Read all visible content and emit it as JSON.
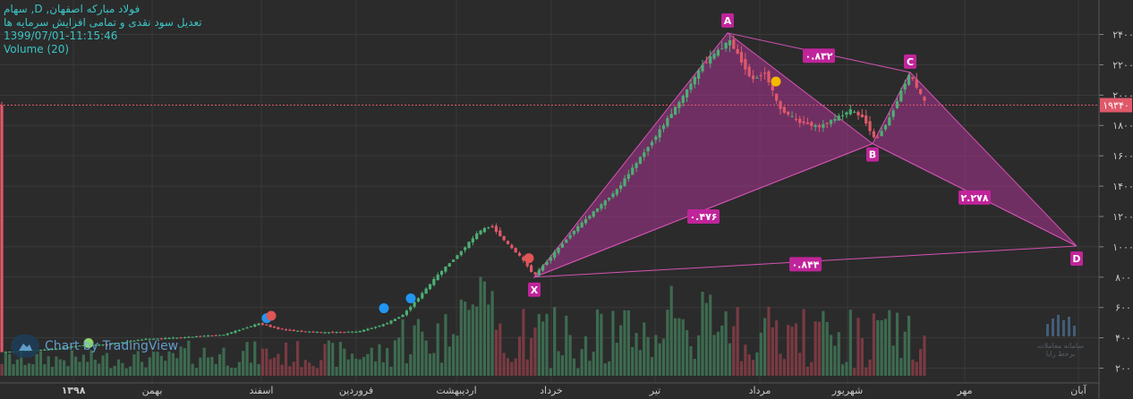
{
  "header": {
    "symbol_line": "فولاد مبارکه اصفهان, D, سهام",
    "adjustment_line": "تعدیل سود نقدی و تمامی افزایش سرمایه ها",
    "timestamp": "1399/07/01-11:15:46",
    "volume_label": "Volume (20)"
  },
  "branding": {
    "tradingview": "Chart by TradingView",
    "watermark": "سامانه معاملات برخط رایا"
  },
  "colors": {
    "background": "#2b2b2b",
    "grid": "#3a3a3a",
    "up": "#4caf73",
    "down": "#e0596b",
    "pattern_fill": "#a8338f",
    "pattern_line": "#d453b3",
    "label_bg": "#c0249a",
    "axis_text": "#c8c8c8",
    "price_line": "#e0596b",
    "volume_up": "#3d6b50",
    "volume_down": "#7a3a42"
  },
  "chart_data": {
    "type": "candlestick",
    "title": "",
    "y_axis": {
      "ticks": [
        2000,
        4000,
        6000,
        8000,
        10000,
        12000,
        14000,
        16000,
        18000,
        20000,
        22000,
        24000
      ],
      "tick_labels": [
        "۲۰۰۰",
        "۴۰۰۰",
        "۶۰۰۰",
        "۸۰۰۰",
        "۱۰۰۰۰",
        "۱۲۰۰۰",
        "۱۴۰۰۰",
        "۱۶۰۰۰",
        "۱۸۰۰۰",
        "۲۰۰۰۰",
        "۲۲۰۰۰",
        "۲۴۰۰۰"
      ],
      "range": [
        1500,
        25800
      ]
    },
    "x_axis": {
      "range": [
        0,
        1000
      ],
      "labels": [
        {
          "t": 82,
          "text": "۱۳۹۸",
          "bold": true
        },
        {
          "t": 170,
          "text": "بهمن"
        },
        {
          "t": 292,
          "text": "اسفند"
        },
        {
          "t": 398,
          "text": "فروردین"
        },
        {
          "t": 510,
          "text": "اردیبهشت"
        },
        {
          "t": 616,
          "text": "خرداد"
        },
        {
          "t": 732,
          "text": "تیر"
        },
        {
          "t": 849,
          "text": "مرداد"
        },
        {
          "t": 947,
          "text": "شهریور"
        },
        {
          "t": 1078,
          "text": "مهر"
        },
        {
          "t": 1205,
          "text": "آبان"
        }
      ]
    },
    "last_price": 19340,
    "last_price_label": "۱۹۳۴۰",
    "price_path": [
      {
        "t": 0,
        "p": 3050
      },
      {
        "t": 60,
        "p": 3250
      },
      {
        "t": 90,
        "p": 3500
      },
      {
        "t": 120,
        "p": 3550
      },
      {
        "t": 160,
        "p": 3900
      },
      {
        "t": 210,
        "p": 4050
      },
      {
        "t": 250,
        "p": 4200
      },
      {
        "t": 290,
        "p": 4950
      },
      {
        "t": 310,
        "p": 4600
      },
      {
        "t": 330,
        "p": 4450
      },
      {
        "t": 360,
        "p": 4350
      },
      {
        "t": 400,
        "p": 4400
      },
      {
        "t": 430,
        "p": 4900
      },
      {
        "t": 450,
        "p": 5500
      },
      {
        "t": 470,
        "p": 6800
      },
      {
        "t": 490,
        "p": 8200
      },
      {
        "t": 515,
        "p": 9700
      },
      {
        "t": 535,
        "p": 11000
      },
      {
        "t": 549,
        "p": 11400
      },
      {
        "t": 565,
        "p": 10300
      },
      {
        "t": 582,
        "p": 9300
      },
      {
        "t": 597,
        "p": 8100
      },
      {
        "t": 640,
        "p": 11000
      },
      {
        "t": 690,
        "p": 13800
      },
      {
        "t": 735,
        "p": 17500
      },
      {
        "t": 762,
        "p": 19800
      },
      {
        "t": 785,
        "p": 22000
      },
      {
        "t": 800,
        "p": 22800
      },
      {
        "t": 815,
        "p": 23600
      },
      {
        "t": 828,
        "p": 22300
      },
      {
        "t": 840,
        "p": 21000
      },
      {
        "t": 855,
        "p": 21500
      },
      {
        "t": 870,
        "p": 19200
      },
      {
        "t": 890,
        "p": 18300
      },
      {
        "t": 915,
        "p": 17900
      },
      {
        "t": 935,
        "p": 18500
      },
      {
        "t": 950,
        "p": 19000
      },
      {
        "t": 965,
        "p": 18500
      },
      {
        "t": 978,
        "p": 17000
      },
      {
        "t": 995,
        "p": 18600
      },
      {
        "t": 1010,
        "p": 20700
      },
      {
        "t": 1017,
        "p": 21400
      },
      {
        "t": 1025,
        "p": 20400
      },
      {
        "t": 1035,
        "p": 19340
      }
    ],
    "pattern": {
      "name": "harmonic XABCD",
      "points": {
        "X": {
          "t": 597,
          "p": 8000
        },
        "A": {
          "t": 813,
          "p": 24100
        },
        "B": {
          "t": 975,
          "p": 16800
        },
        "C": {
          "t": 1017,
          "p": 21500
        },
        "D": {
          "t": 1203,
          "p": 10050
        }
      },
      "ratios": [
        {
          "text": "۰.۸۳۲",
          "t": 915,
          "p": 22600
        },
        {
          "text": "۰.۴۷۶",
          "t": 786,
          "p": 12000
        },
        {
          "text": "۲.۲۷۸",
          "t": 1089,
          "p": 13250
        },
        {
          "text": "۰.۸۴۴",
          "t": 900,
          "p": 8850
        }
      ]
    },
    "markers": [
      {
        "t": 99,
        "p": 3650,
        "color": "#8fd46a"
      },
      {
        "t": 298,
        "p": 5300,
        "color": "#2196f3"
      },
      {
        "t": 303,
        "p": 5450,
        "color": "#e05555"
      },
      {
        "t": 429,
        "p": 5950,
        "color": "#2196f3"
      },
      {
        "t": 459,
        "p": 6600,
        "color": "#2196f3"
      },
      {
        "t": 591,
        "p": 9250,
        "color": "#e05555"
      },
      {
        "t": 867,
        "p": 20900,
        "color": "#f5b800"
      }
    ]
  }
}
